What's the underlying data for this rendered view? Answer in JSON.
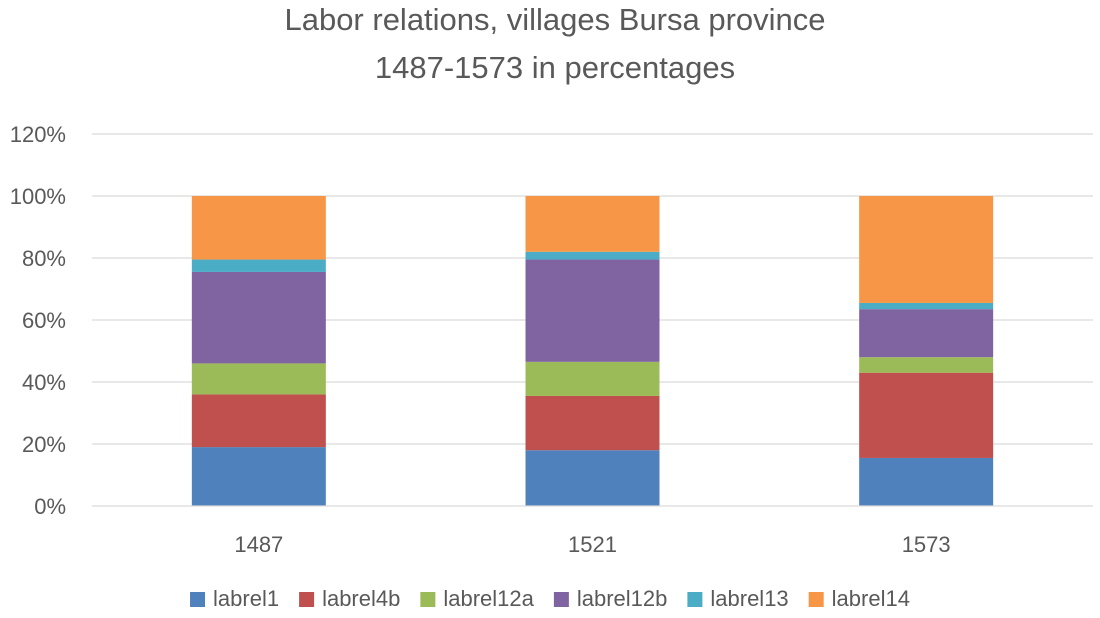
{
  "chart_data": {
    "type": "bar",
    "stacked": true,
    "title_lines": [
      "Labor relations, villages Bursa province",
      "1487-1573 in percentages"
    ],
    "categories": [
      "1487",
      "1521",
      "1573"
    ],
    "ylim": [
      0,
      1.2
    ],
    "y_ticks": [
      0,
      0.2,
      0.4,
      0.6,
      0.8,
      1.0,
      1.2
    ],
    "y_tick_labels": [
      "0%",
      "20%",
      "40%",
      "60%",
      "80%",
      "100%",
      "120%"
    ],
    "grid": true,
    "legend_position": "bottom",
    "series": [
      {
        "name": "labrel1",
        "color": "#4f81bd",
        "values": [
          0.19,
          0.18,
          0.155
        ]
      },
      {
        "name": "labrel4b",
        "color": "#c0504d",
        "values": [
          0.17,
          0.175,
          0.275
        ]
      },
      {
        "name": "labrel12a",
        "color": "#9bbb59",
        "values": [
          0.1,
          0.11,
          0.05
        ]
      },
      {
        "name": "labrel12b",
        "color": "#8064a2",
        "values": [
          0.295,
          0.33,
          0.155
        ]
      },
      {
        "name": "labrel13",
        "color": "#4bacc6",
        "values": [
          0.04,
          0.025,
          0.02
        ]
      },
      {
        "name": "labrel14",
        "color": "#f79646",
        "values": [
          0.205,
          0.18,
          0.345
        ]
      }
    ]
  }
}
